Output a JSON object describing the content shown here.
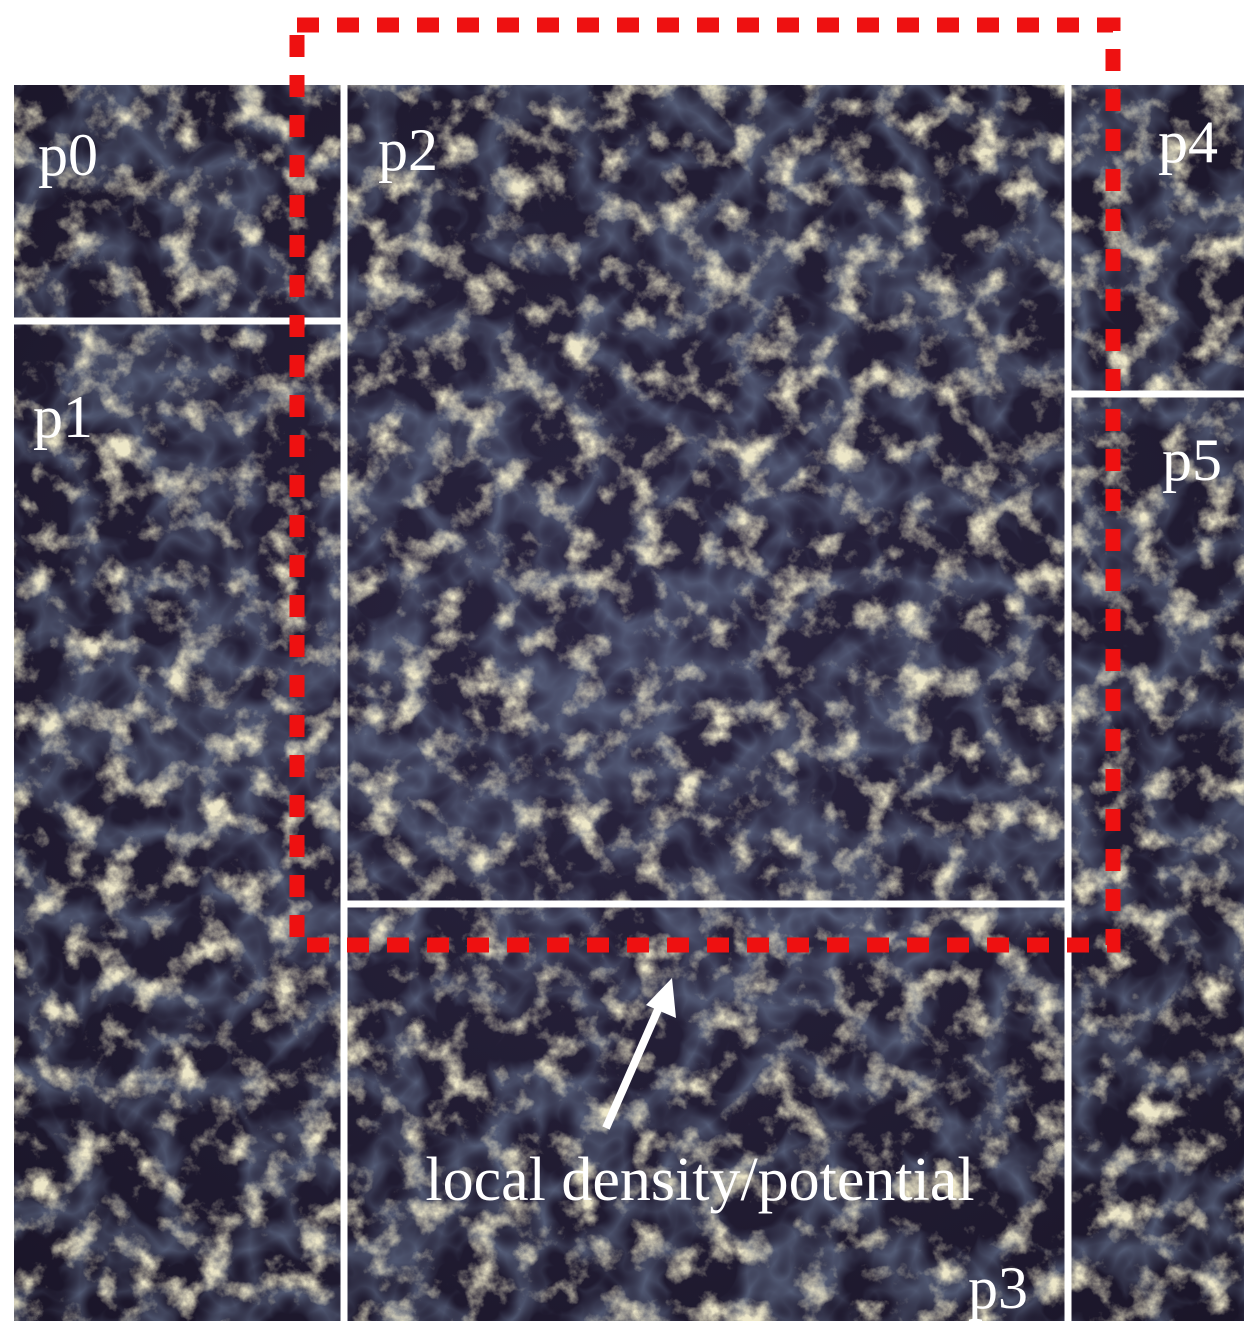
{
  "panels": [
    {
      "label": "p0"
    },
    {
      "label": "p1"
    },
    {
      "label": "p2"
    },
    {
      "label": "p3"
    },
    {
      "label": "p4"
    },
    {
      "label": "p5"
    }
  ],
  "annotation": "local density/potential"
}
